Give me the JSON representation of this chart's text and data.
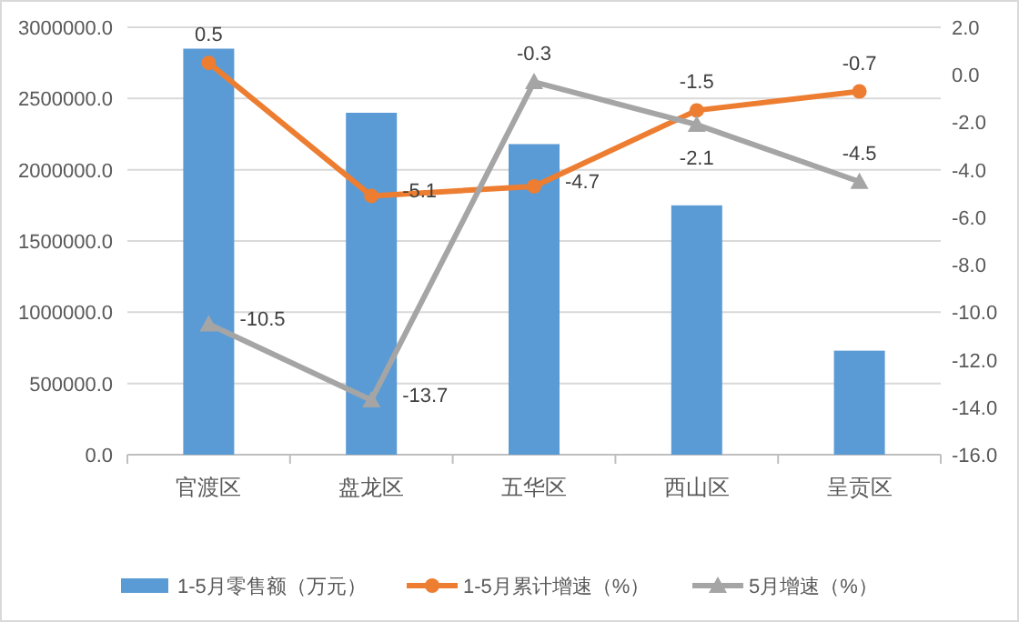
{
  "chart_data": {
    "type": "bar",
    "categories": [
      "官渡区",
      "盘龙区",
      "五华区",
      "西山区",
      "呈贡区"
    ],
    "series": [
      {
        "name": "1-5月零售额（万元）",
        "color": "#5b9bd5",
        "values": [
          2850000,
          2400000,
          2180000,
          1750000,
          730000
        ]
      },
      {
        "name": "1-5月累计增速（%）",
        "type": "line",
        "axis": "y2",
        "color": "#ed7d31",
        "marker": "circle",
        "values": [
          0.5,
          -5.1,
          -4.7,
          -1.5,
          -0.7
        ],
        "value_labels": [
          "0.5",
          "-5.1",
          "-4.7",
          "-1.5",
          "-0.7"
        ]
      },
      {
        "name": "5月增速（%）",
        "type": "line",
        "axis": "y2",
        "color": "#a5a5a5",
        "marker": "triangle",
        "values": [
          -10.5,
          -13.7,
          -0.3,
          -2.1,
          -4.5
        ],
        "value_labels": [
          "-10.5",
          "-13.7",
          "-0.3",
          "-2.1",
          "-4.5"
        ]
      }
    ],
    "ylim": [
      0,
      3000000
    ],
    "yticks": [
      {
        "value": 0,
        "label": "0.0"
      },
      {
        "value": 500000,
        "label": "500000.0"
      },
      {
        "value": 1000000,
        "label": "1000000.0"
      },
      {
        "value": 1500000,
        "label": "1500000.0"
      },
      {
        "value": 2000000,
        "label": "2000000.0"
      },
      {
        "value": 2500000,
        "label": "2500000.0"
      },
      {
        "value": 3000000,
        "label": "3000000.0"
      }
    ],
    "y2lim": [
      -16,
      2
    ],
    "y2ticks": [
      {
        "value": -16,
        "label": "-16.0"
      },
      {
        "value": -14,
        "label": "-14.0"
      },
      {
        "value": -12,
        "label": "-12.0"
      },
      {
        "value": -10,
        "label": "-10.0"
      },
      {
        "value": -8,
        "label": "-8.0"
      },
      {
        "value": -6,
        "label": "-6.0"
      },
      {
        "value": -4,
        "label": "-4.0"
      },
      {
        "value": -2,
        "label": "-2.0"
      },
      {
        "value": 0,
        "label": "0.0"
      },
      {
        "value": 2,
        "label": "2.0"
      }
    ],
    "grid": "y",
    "legend": "bottom"
  }
}
